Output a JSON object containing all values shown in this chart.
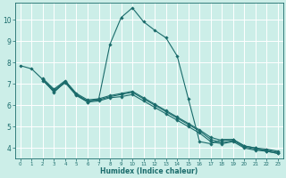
{
  "xlabel": "Humidex (Indice chaleur)",
  "bg_color": "#cceee8",
  "line_color": "#1a6b6b",
  "grid_color": "#ffffff",
  "xlim": [
    -0.5,
    23.5
  ],
  "ylim": [
    3.5,
    10.8
  ],
  "yticks": [
    4,
    5,
    6,
    7,
    8,
    9,
    10
  ],
  "xticks": [
    0,
    1,
    2,
    3,
    4,
    5,
    6,
    7,
    8,
    9,
    10,
    11,
    12,
    13,
    14,
    15,
    16,
    17,
    18,
    19,
    20,
    21,
    22,
    23
  ],
  "lines": [
    {
      "x": [
        0,
        1,
        2,
        3,
        4,
        5,
        6,
        7,
        8,
        9,
        10,
        11,
        12,
        13,
        14,
        15,
        16,
        17,
        18,
        19,
        20,
        21,
        22,
        23
      ],
      "y": [
        7.85,
        7.7,
        7.2,
        6.6,
        7.1,
        6.5,
        6.15,
        6.3,
        8.85,
        10.1,
        10.55,
        9.9,
        9.5,
        9.15,
        8.3,
        6.3,
        4.3,
        4.2,
        4.4,
        4.4,
        4.1,
        4.0,
        3.85,
        3.75
      ]
    },
    {
      "x": [
        2,
        3,
        4,
        5,
        6,
        7,
        8,
        9,
        10,
        11,
        12,
        13,
        14,
        15,
        16,
        17,
        18,
        19,
        20,
        21,
        22,
        23
      ],
      "y": [
        7.15,
        6.65,
        7.05,
        6.45,
        6.15,
        6.2,
        6.35,
        6.4,
        6.5,
        6.2,
        5.9,
        5.6,
        5.3,
        5.0,
        4.7,
        4.3,
        4.2,
        4.3,
        4.0,
        3.9,
        3.85,
        3.75
      ]
    },
    {
      "x": [
        2,
        3,
        4,
        5,
        6,
        7,
        8,
        9,
        10,
        11,
        12,
        13,
        14,
        15,
        16,
        17,
        18,
        19,
        20,
        21,
        22,
        23
      ],
      "y": [
        7.2,
        6.7,
        7.1,
        6.5,
        6.2,
        6.25,
        6.4,
        6.5,
        6.6,
        6.3,
        6.0,
        5.7,
        5.4,
        5.1,
        4.8,
        4.4,
        4.25,
        4.35,
        4.05,
        3.95,
        3.9,
        3.8
      ]
    },
    {
      "x": [
        2,
        3,
        4,
        5,
        6,
        7,
        8,
        9,
        10,
        11,
        12,
        13,
        14,
        15,
        16,
        17,
        18,
        19,
        20,
        21,
        22,
        23
      ],
      "y": [
        7.25,
        6.75,
        7.15,
        6.55,
        6.25,
        6.3,
        6.45,
        6.55,
        6.65,
        6.35,
        6.05,
        5.75,
        5.45,
        5.15,
        4.85,
        4.5,
        4.35,
        4.4,
        4.1,
        4.0,
        3.95,
        3.85
      ]
    }
  ]
}
